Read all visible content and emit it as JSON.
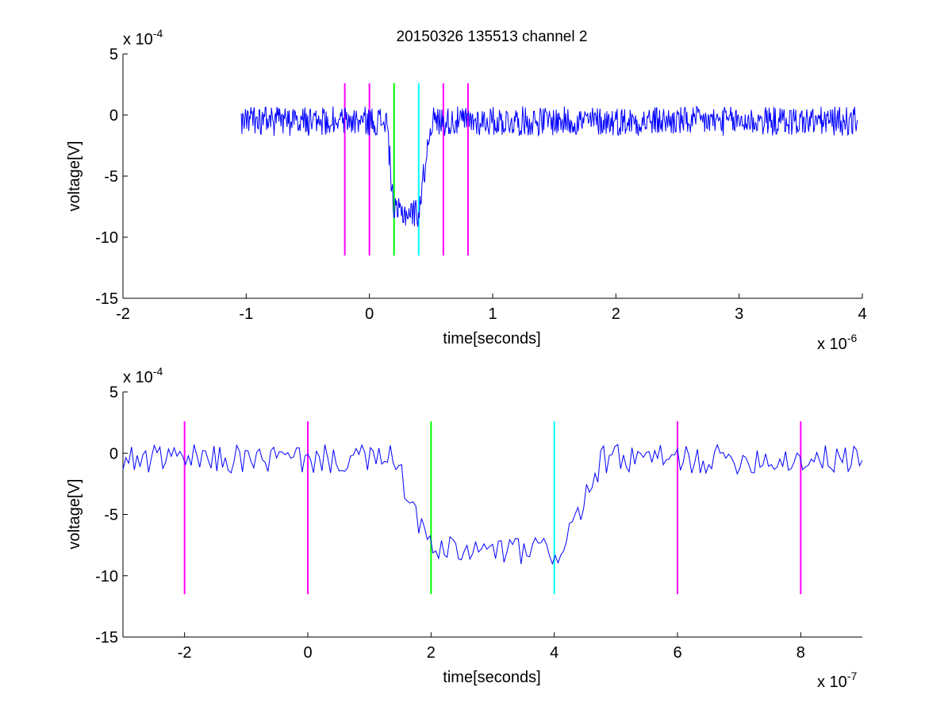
{
  "figure_title": "20150326 135513 channel 2",
  "chart_data": [
    {
      "type": "line",
      "xlabel": "time[seconds]",
      "ylabel": "voltage[V]",
      "x_exponent_label": "x 10",
      "x_exponent": "-6",
      "y_exponent_label": "x 10",
      "y_exponent": "-4",
      "xlim": [
        -2e-06,
        4e-06
      ],
      "ylim": [
        -0.0015,
        0.0005
      ],
      "xticks": [
        -2e-06,
        -1e-06,
        0,
        1e-06,
        2e-06,
        3e-06,
        4e-06
      ],
      "xtick_labels": [
        "-2",
        "-1",
        "0",
        "1",
        "2",
        "3",
        "4"
      ],
      "yticks": [
        -0.0015,
        -0.001,
        -0.0005,
        0,
        0.0005
      ],
      "ytick_labels": [
        "-15",
        "-10",
        "-5",
        "0",
        "5"
      ],
      "grid": false,
      "signal": {
        "color": "#0000ff",
        "x_start": -1.04e-06,
        "x_end": 3.96e-06,
        "dip_start": 1.4e-07,
        "dip_full": 2e-07,
        "dip_recover_start": 4e-07,
        "dip_end": 5e-07,
        "baseline": -5e-05,
        "dip_level": -0.0008,
        "noise_amplitude": 0.00012
      },
      "markers": [
        {
          "x": -2e-07,
          "y_top": 0.00026,
          "y_bottom": -0.00115,
          "color": "#ff00ff"
        },
        {
          "x": 0,
          "y_top": 0.00026,
          "y_bottom": -0.00115,
          "color": "#ff00ff"
        },
        {
          "x": 2e-07,
          "y_top": 0.00026,
          "y_bottom": -0.00115,
          "color": "#00ff00"
        },
        {
          "x": 4e-07,
          "y_top": 0.00026,
          "y_bottom": -0.00115,
          "color": "#00ffff"
        },
        {
          "x": 6e-07,
          "y_top": 0.00026,
          "y_bottom": -0.00115,
          "color": "#ff00ff"
        },
        {
          "x": 8e-07,
          "y_top": 0.00026,
          "y_bottom": -0.00115,
          "color": "#ff00ff"
        }
      ]
    },
    {
      "type": "line",
      "xlabel": "time[seconds]",
      "ylabel": "voltage[V]",
      "x_exponent_label": "x 10",
      "x_exponent": "-7",
      "y_exponent_label": "x 10",
      "y_exponent": "-4",
      "xlim": [
        -3e-07,
        9e-07
      ],
      "ylim": [
        -0.0015,
        0.0005
      ],
      "xticks": [
        -2e-07,
        0,
        2e-07,
        4e-07,
        6e-07,
        8e-07
      ],
      "xtick_labels": [
        "-2",
        "0",
        "2",
        "4",
        "6",
        "8"
      ],
      "yticks": [
        -0.0015,
        -0.001,
        -0.0005,
        0,
        0.0005
      ],
      "ytick_labels": [
        "-15",
        "-10",
        "-5",
        "0",
        "5"
      ],
      "grid": false,
      "signal": {
        "color": "#0000ff",
        "x_start": -3e-07,
        "x_end": 9e-07,
        "dip_start": 1.4e-07,
        "dip_full": 2e-07,
        "dip_recover_start": 4.1e-07,
        "dip_end": 4.8e-07,
        "baseline": -5e-05,
        "dip_level": -0.0008,
        "noise_amplitude": 0.00012
      },
      "markers": [
        {
          "x": -2e-07,
          "y_top": 0.00026,
          "y_bottom": -0.00115,
          "color": "#ff00ff"
        },
        {
          "x": 0,
          "y_top": 0.00026,
          "y_bottom": -0.00115,
          "color": "#ff00ff"
        },
        {
          "x": 2e-07,
          "y_top": 0.00026,
          "y_bottom": -0.00115,
          "color": "#00ff00"
        },
        {
          "x": 4e-07,
          "y_top": 0.00026,
          "y_bottom": -0.00115,
          "color": "#00ffff"
        },
        {
          "x": 6e-07,
          "y_top": 0.00026,
          "y_bottom": -0.00115,
          "color": "#ff00ff"
        },
        {
          "x": 8e-07,
          "y_top": 0.00026,
          "y_bottom": -0.00115,
          "color": "#ff00ff"
        }
      ]
    }
  ]
}
